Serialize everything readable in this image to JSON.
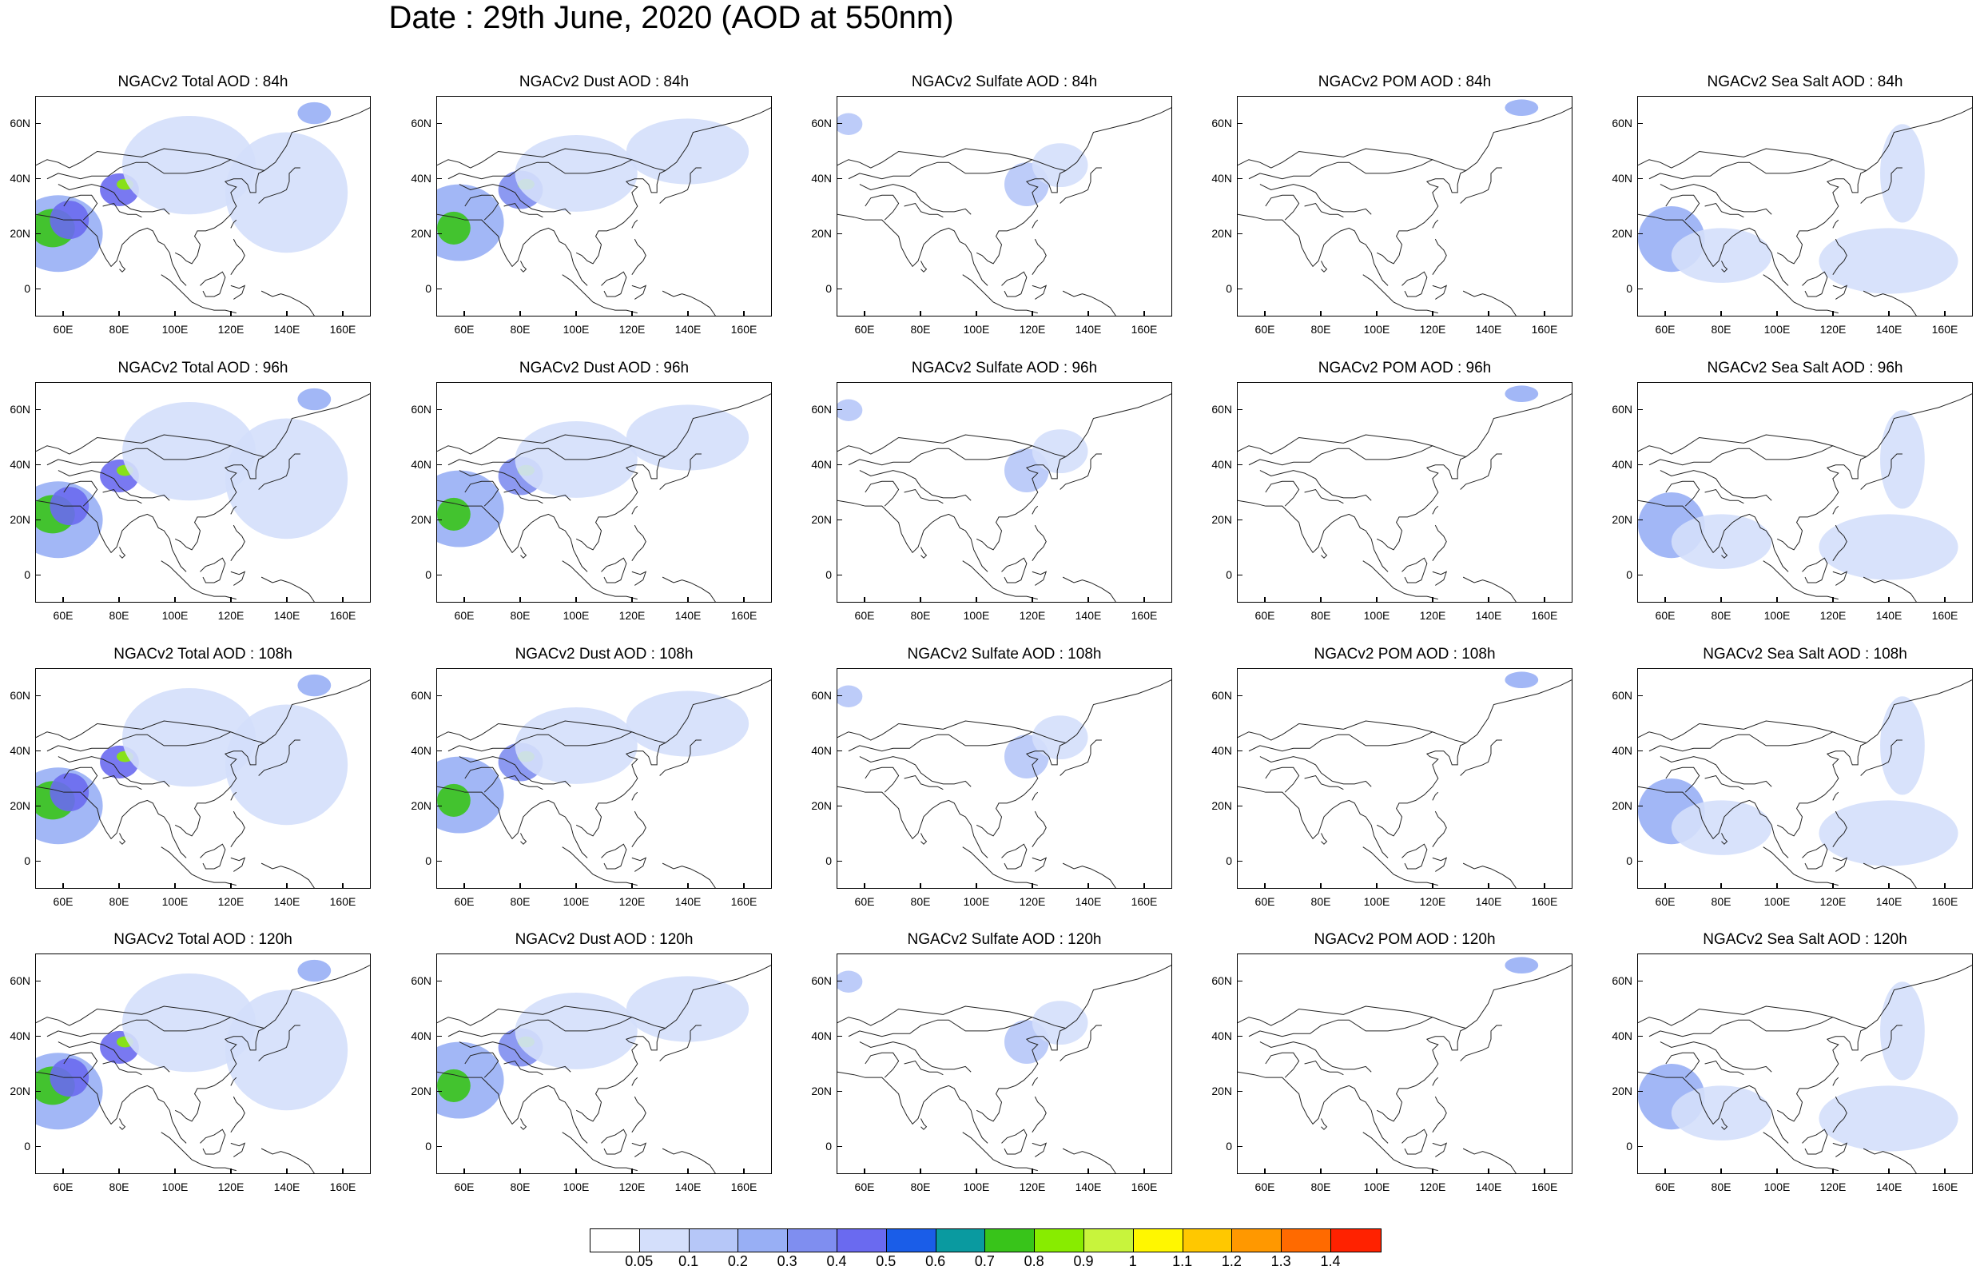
{
  "title": "Date : 29th June, 2020 (AOD at 550nm)",
  "row_hours": [
    "84h",
    "96h",
    "108h",
    "120h"
  ],
  "panels": [
    [
      "NGACv2 Total AOD : 84h",
      "NGACv2 Dust AOD : 84h",
      "NGACv2 Sulfate AOD : 84h",
      "NGACv2 POM AOD : 84h",
      "NGACv2 Sea Salt AOD : 84h"
    ],
    [
      "NGACv2 Total AOD : 96h",
      "NGACv2 Dust AOD : 96h",
      "NGACv2 Sulfate AOD : 96h",
      "NGACv2 POM AOD : 96h",
      "NGACv2 Sea Salt AOD : 96h"
    ],
    [
      "NGACv2 Total AOD : 108h",
      "NGACv2 Dust AOD : 108h",
      "NGACv2 Sulfate AOD : 108h",
      "NGACv2 POM AOD : 108h",
      "NGACv2 Sea Salt AOD : 108h"
    ],
    [
      "NGACv2 Total AOD : 120h",
      "NGACv2 Dust AOD : 120h",
      "NGACv2 Sulfate AOD : 120h",
      "NGACv2 POM AOD : 120h",
      "NGACv2 Sea Salt  AOD : 120h"
    ]
  ],
  "map": {
    "lat_labels": [
      "60N",
      "40N",
      "20N",
      "0"
    ],
    "lat_values": [
      60,
      40,
      20,
      0
    ],
    "lon_labels": [
      "60E",
      "80E",
      "100E",
      "120E",
      "140E",
      "160E"
    ],
    "lon_values": [
      60,
      80,
      100,
      120,
      140,
      160
    ],
    "lon_range": [
      50,
      170
    ],
    "lat_range": [
      -10,
      70
    ]
  },
  "colorbar": {
    "labels": [
      "0.05",
      "0.1",
      "0.2",
      "0.3",
      "0.4",
      "0.5",
      "0.6",
      "0.7",
      "0.8",
      "0.9",
      "1",
      "1.1",
      "1.2",
      "1.3",
      "1.4"
    ],
    "colors": [
      "#ffffff",
      "#d4dffb",
      "#b6c7f8",
      "#98aff5",
      "#7f8ef0",
      "#6a6af0",
      "#1a5de8",
      "#0a9aa0",
      "#38c41a",
      "#88ec00",
      "#c8f43c",
      "#fff700",
      "#ffc800",
      "#ff9800",
      "#ff6a00",
      "#ff2200"
    ]
  }
}
